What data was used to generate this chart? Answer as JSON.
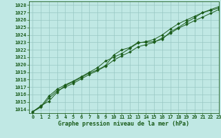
{
  "x_label": "Graphe pression niveau de la mer (hPa)",
  "xlim": [
    -0.5,
    23
  ],
  "ylim": [
    1013.5,
    1028.5
  ],
  "yticks": [
    1014,
    1015,
    1016,
    1017,
    1018,
    1019,
    1020,
    1021,
    1022,
    1023,
    1024,
    1025,
    1026,
    1027,
    1028
  ],
  "xticks": [
    0,
    1,
    2,
    3,
    4,
    5,
    6,
    7,
    8,
    9,
    10,
    11,
    12,
    13,
    14,
    15,
    16,
    17,
    18,
    19,
    20,
    21,
    22,
    23
  ],
  "background_color": "#c0e8e4",
  "grid_color": "#98c8c4",
  "line_color": "#1a5c1a",
  "marker_color": "#1a5c1a",
  "line1": [
    1013.7,
    1014.5,
    1015.1,
    1016.3,
    1017.2,
    1017.7,
    1018.3,
    1018.9,
    1019.3,
    1019.9,
    1021.3,
    1022.0,
    1022.3,
    1023.0,
    1023.0,
    1023.1,
    1023.4,
    1024.4,
    1025.0,
    1025.7,
    1026.3,
    1027.0,
    1027.4,
    1027.8
  ],
  "line2": [
    1013.7,
    1014.4,
    1015.8,
    1016.7,
    1017.3,
    1017.8,
    1018.4,
    1019.0,
    1019.6,
    1020.5,
    1021.0,
    1021.5,
    1022.2,
    1022.9,
    1023.1,
    1023.4,
    1024.0,
    1024.8,
    1025.5,
    1026.0,
    1026.5,
    1027.0,
    1027.3,
    1027.6
  ],
  "line3": [
    1013.7,
    1014.3,
    1015.5,
    1016.5,
    1017.0,
    1017.5,
    1018.1,
    1018.7,
    1019.2,
    1019.8,
    1020.6,
    1021.2,
    1021.7,
    1022.4,
    1022.7,
    1023.0,
    1023.6,
    1024.2,
    1024.9,
    1025.4,
    1025.9,
    1026.4,
    1026.9,
    1027.4
  ],
  "tick_fontsize": 5.0,
  "label_fontsize": 6.0,
  "linewidth": 0.7,
  "markersize": 2.0
}
